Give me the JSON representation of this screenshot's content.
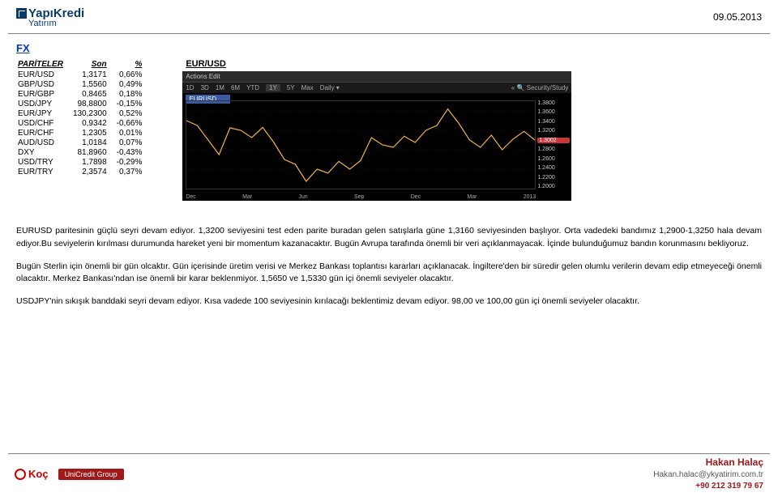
{
  "header": {
    "brand_top": "YapıKredi",
    "brand_sub": "Yatırım",
    "date": "09.05.2013"
  },
  "fx": {
    "title": "FX",
    "columns": [
      "PARİTELER",
      "Son",
      "%"
    ],
    "rows": [
      {
        "pair": "EUR/USD",
        "last": "1,3171",
        "chg": "0,66%"
      },
      {
        "pair": "GBP/USD",
        "last": "1,5560",
        "chg": "0,49%"
      },
      {
        "pair": "EUR/GBP",
        "last": "0,8465",
        "chg": "0,18%"
      },
      {
        "pair": "USD/JPY",
        "last": "98,8800",
        "chg": "-0,15%"
      },
      {
        "pair": "EUR/JPY",
        "last": "130,2300",
        "chg": "0,52%"
      },
      {
        "pair": "USD/CHF",
        "last": "0,9342",
        "chg": "-0,66%"
      },
      {
        "pair": "EUR/CHF",
        "last": "1,2305",
        "chg": "0,01%"
      },
      {
        "pair": "AUD/USD",
        "last": "1,0184",
        "chg": "0,07%"
      },
      {
        "pair": "DXY",
        "last": "81,8960",
        "chg": "-0,43%"
      },
      {
        "pair": "USD/TRY",
        "last": "1,7898",
        "chg": "-0,29%"
      },
      {
        "pair": "EUR/TRY",
        "last": "2,3574",
        "chg": "0,37%"
      }
    ]
  },
  "chart": {
    "title": "EUR/USD",
    "toolbar_top": "Actions    Edit",
    "ranges": [
      "1D",
      "3D",
      "1M",
      "6M",
      "YTD",
      "1Y",
      "5Y",
      "Max"
    ],
    "range_selected": "1Y",
    "freq": "Daily",
    "extra": "Security/Study",
    "ticker": "EURUSD",
    "y_ticks": [
      "1.3800",
      "1.3600",
      "1.3400",
      "1.3200",
      "1.3002",
      "1.2800",
      "1.2600",
      "1.2400",
      "1.2200",
      "1.2000"
    ],
    "y_highlight": "1.3002",
    "x_ticks": [
      "Dec",
      "Mar",
      "Jun",
      "Sep",
      "Dec",
      "Mar",
      "2013"
    ],
    "line_color": "#f2b24a",
    "bg": "#000000",
    "grid_color": "#2a2a2a",
    "ymin": 1.2,
    "ymax": 1.38,
    "points": [
      1.34,
      1.33,
      1.3,
      1.27,
      1.325,
      1.32,
      1.305,
      1.326,
      1.296,
      1.26,
      1.25,
      1.215,
      1.24,
      1.232,
      1.256,
      1.24,
      1.258,
      1.305,
      1.29,
      1.285,
      1.308,
      1.295,
      1.32,
      1.33,
      1.364,
      1.335,
      1.3,
      1.285,
      1.31,
      1.28,
      1.302,
      1.318,
      1.3
    ]
  },
  "paragraphs": {
    "p1": "EURUSD paritesinin güçlü seyri devam ediyor. 1,3200 seviyesini test eden parite buradan gelen satışlarla güne 1,3160 seviyesinden başlıyor. Orta vadedeki bandımız 1,2900-1,3250 hala devam ediyor.Bu seviyelerin kırılması durumunda hareket yeni bir momentum kazanacaktır. Bugün Avrupa tarafında önemli bir veri açıklanmayacak. İçinde bulunduğumuz bandın korunmasını bekliyoruz.",
    "p2": "Bugün Sterlin için önemli bir gün olcaktır. Gün içerisinde üretim verisi ve Merkez Bankası toplantısı kararları açıklanacak. İngiltere'den bir süredir gelen olumlu verilerin devam edip etmeyeceği önemli olacaktır. Merkez Bankası'ndan ise önemli bir karar beklenmiyor. 1,5650 ve 1,5330 gün içi önemli seviyeler olacaktır.",
    "p3": "USDJPY'nin sıkışık banddaki seyri devam ediyor. Kısa vadede 100 seviyesinin kırılacağı beklentimiz devam ediyor. 98,00 ve 100,00 gün içi önemli seviyeler olacaktır."
  },
  "footer": {
    "koc": "Koç",
    "unicredit": "UniCredit Group",
    "name": "Hakan Halaç",
    "mail": "Hakan.halac@ykyatirim.com.tr",
    "phone": "+90 212 319 79 67"
  }
}
